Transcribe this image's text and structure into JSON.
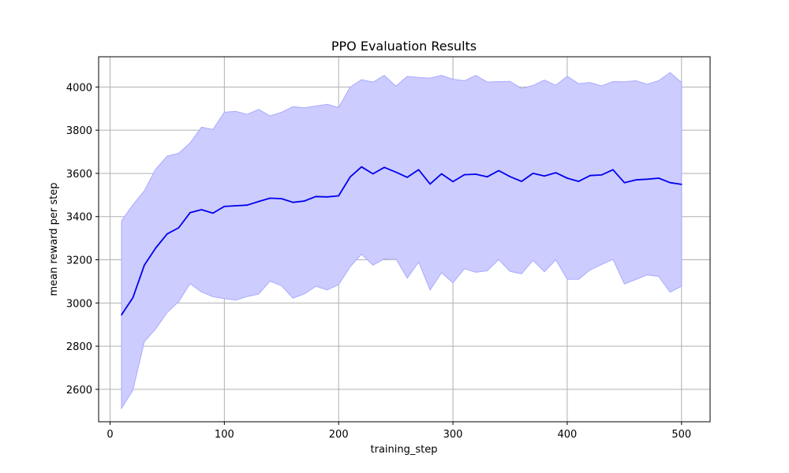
{
  "chart_data": {
    "type": "line",
    "title": "PPO Evaluation Results",
    "xlabel": "training_step",
    "ylabel": "mean reward per step",
    "xlim": [
      -10,
      525
    ],
    "ylim": [
      2450,
      4140
    ],
    "xticks": [
      0,
      100,
      200,
      300,
      400,
      500
    ],
    "yticks": [
      2600,
      2800,
      3000,
      3200,
      3400,
      3600,
      3800,
      4000
    ],
    "grid": true,
    "colors": {
      "line": "#0000ee",
      "band_fill": "#ccccff",
      "band_edge": "#aaaaff",
      "grid": "#b0b0b0"
    },
    "x": [
      10,
      20,
      30,
      40,
      50,
      60,
      70,
      80,
      90,
      100,
      110,
      120,
      130,
      140,
      150,
      160,
      170,
      180,
      190,
      200,
      210,
      220,
      230,
      240,
      250,
      260,
      270,
      280,
      290,
      300,
      310,
      320,
      330,
      340,
      350,
      360,
      370,
      380,
      390,
      400,
      410,
      420,
      430,
      440,
      450,
      460,
      470,
      480,
      490,
      500
    ],
    "series": [
      {
        "values": [
          2945,
          3025,
          3175,
          3255,
          3320,
          3348,
          3418,
          3432,
          3416,
          3447,
          3450,
          3453,
          3470,
          3485,
          3483,
          3466,
          3472,
          3493,
          3491,
          3496,
          3583,
          3630,
          3598,
          3628,
          3606,
          3582,
          3617,
          3551,
          3598,
          3562,
          3594,
          3596,
          3584,
          3613,
          3585,
          3563,
          3600,
          3588,
          3603,
          3578,
          3563,
          3590,
          3593,
          3617,
          3557,
          3570,
          3573,
          3578,
          3557,
          3549
        ],
        "upper": [
          3380,
          3455,
          3520,
          3620,
          3680,
          3693,
          3741,
          3814,
          3803,
          3883,
          3887,
          3873,
          3896,
          3866,
          3883,
          3909,
          3904,
          3912,
          3920,
          3905,
          3999,
          4034,
          4022,
          4054,
          4004,
          4049,
          4044,
          4041,
          4054,
          4036,
          4029,
          4054,
          4023,
          4025,
          4026,
          3993,
          4007,
          4032,
          4008,
          4050,
          4015,
          4021,
          4005,
          4025,
          4024,
          4029,
          4013,
          4029,
          4067,
          4021
        ],
        "lower": [
          2512,
          2597,
          2821,
          2880,
          2956,
          3006,
          3089,
          3051,
          3029,
          3020,
          3013,
          3030,
          3041,
          3101,
          3080,
          3022,
          3042,
          3077,
          3060,
          3085,
          3167,
          3226,
          3175,
          3204,
          3206,
          3115,
          3190,
          3060,
          3140,
          3093,
          3159,
          3142,
          3149,
          3201,
          3146,
          3135,
          3197,
          3145,
          3200,
          3110,
          3110,
          3153,
          3178,
          3202,
          3088,
          3109,
          3130,
          3123,
          3050,
          3077
        ]
      }
    ]
  }
}
